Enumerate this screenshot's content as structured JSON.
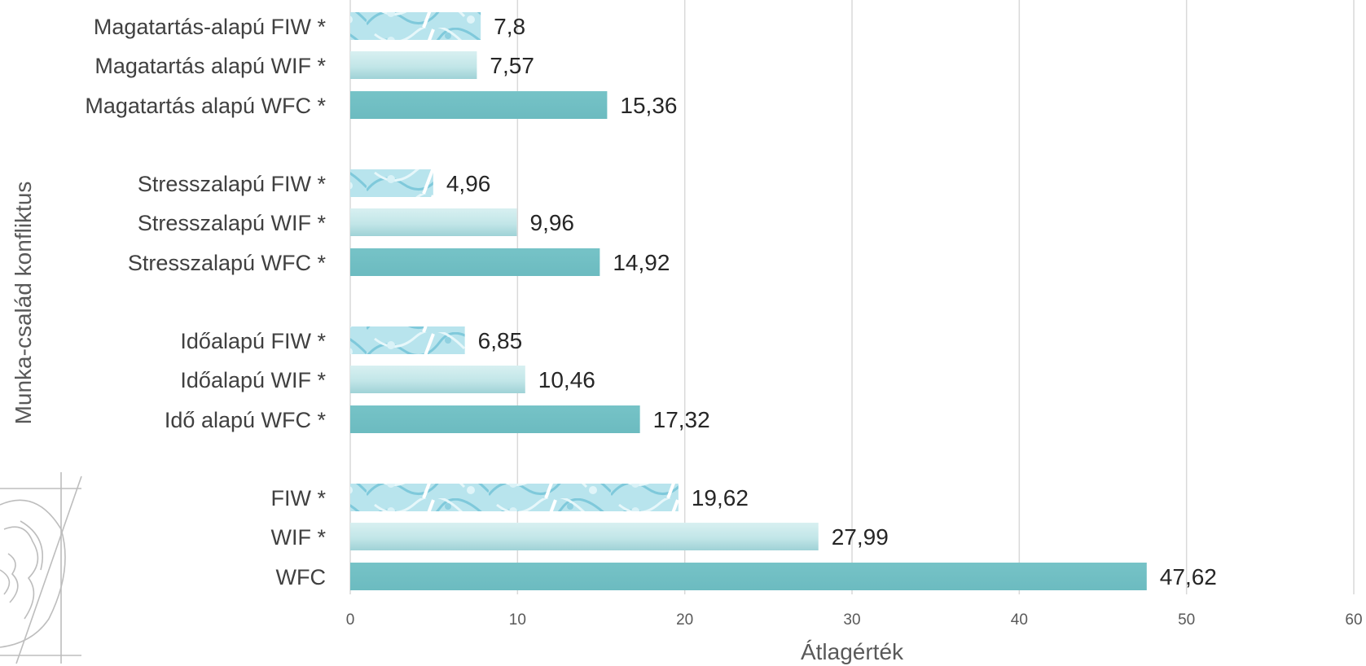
{
  "chart_data": {
    "type": "bar",
    "orientation": "horizontal",
    "title": "",
    "xlabel": "Átlagérték",
    "ylabel": "Munka-család konfliktus",
    "xlim": [
      0,
      60
    ],
    "xticks": [
      "0",
      "10",
      "20",
      "30",
      "40",
      "50",
      "60"
    ],
    "grid": "vertical",
    "legend": "none",
    "colors": {
      "wfc": "#72c0c4",
      "wif": "#c6e8ea",
      "fiw": "#a9dde8"
    },
    "categories": [
      {
        "label": "Magatartás-alapú FIW *",
        "value": 7.8,
        "display": "7,8",
        "style": "fiw"
      },
      {
        "label": "Magatartás alapú WIF *",
        "value": 7.57,
        "display": "7,57",
        "style": "wif"
      },
      {
        "label": "Magatartás alapú WFC *",
        "value": 15.36,
        "display": "15,36",
        "style": "wfc"
      },
      {
        "label": "Stresszalapú FIW *",
        "value": 4.96,
        "display": "4,96",
        "style": "fiw"
      },
      {
        "label": "Stresszalapú WIF *",
        "value": 9.96,
        "display": "9,96",
        "style": "wif"
      },
      {
        "label": "Stresszalapú WFC *",
        "value": 14.92,
        "display": "14,92",
        "style": "wfc"
      },
      {
        "label": "Időalapú FIW *",
        "value": 6.85,
        "display": "6,85",
        "style": "fiw"
      },
      {
        "label": "Időalapú WIF *",
        "value": 10.46,
        "display": "10,46",
        "style": "wif"
      },
      {
        "label": "Idő alapú WFC *",
        "value": 17.32,
        "display": "17,32",
        "style": "wfc"
      },
      {
        "label": "FIW *",
        "value": 19.62,
        "display": "19,62",
        "style": "fiw"
      },
      {
        "label": "WIF *",
        "value": 27.99,
        "display": "27,99",
        "style": "wif"
      },
      {
        "label": "WFC",
        "value": 47.62,
        "display": "47,62",
        "style": "wfc"
      }
    ]
  }
}
